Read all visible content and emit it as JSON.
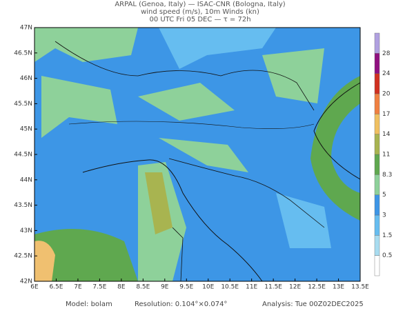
{
  "header": {
    "line1": "ARPAL (Genoa, Italy)  —  ISAC-CNR (Bologna, Italy)",
    "line2": "wind speed (m/s), 10m Winds (kn)",
    "line3": "00 UTC Fri 05 DEC  —  τ = 72h"
  },
  "lon_ticks": [
    "6E",
    "6.5E",
    "7E",
    "7.5E",
    "8E",
    "8.5E",
    "9E",
    "9.5E",
    "10E",
    "10.5E",
    "11E",
    "11.5E",
    "12E",
    "12.5E",
    "13E",
    "13.5E"
  ],
  "lat_ticks": [
    "42N",
    "42.5N",
    "43N",
    "43.5N",
    "44N",
    "44.5N",
    "45N",
    "45.5N",
    "46N",
    "46.5N",
    "47N"
  ],
  "colorbar": {
    "levels": [
      0.5,
      1.5,
      3,
      5,
      8.3,
      11,
      14,
      17,
      20,
      24,
      28
    ]
  },
  "footer": {
    "model": "Model: bolam",
    "resolution": "Resolution: 0.104°×0.074°",
    "analysis": "Analysis: Tue 00Z02DEC2025"
  }
}
